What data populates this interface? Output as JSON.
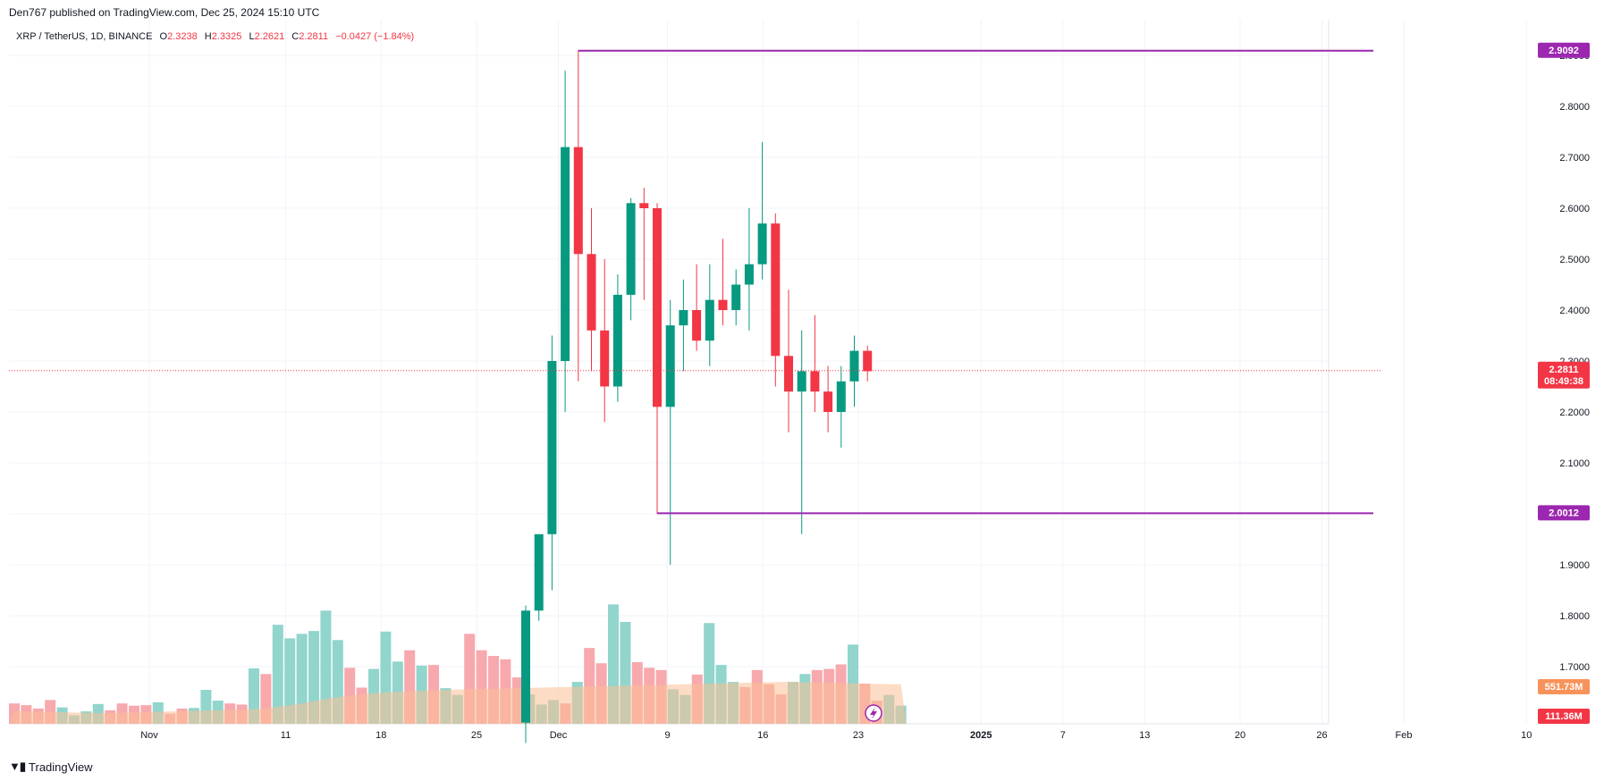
{
  "header": {
    "published": "Den767 published on TradingView.com, Dec 25, 2024 15:10 UTC"
  },
  "legend": {
    "symbol": "XRP / TetherUS, 1D, BINANCE",
    "o_label": "O",
    "o": "2.3238",
    "h_label": "H",
    "h": "2.3325",
    "l_label": "L",
    "l": "2.2621",
    "c_label": "C",
    "c": "2.2811",
    "change": "−0.0427 (−1.84%)"
  },
  "footer": {
    "brand": "TradingView"
  },
  "colors": {
    "up": "#089981",
    "down": "#f23645",
    "level": "#9c27b0",
    "price_line": "#f23645",
    "vol_up": "#91d5cc",
    "vol_down": "#f7a9ad",
    "vol_ma": "#fbbf96"
  },
  "chart_data": {
    "type": "candlestick",
    "symbol": "XRP / TetherUS",
    "timeframe": "1D",
    "exchange": "BINANCE",
    "ylim": [
      1.62,
      2.98
    ],
    "y_ticks": [
      "1.7000",
      "1.8000",
      "1.9000",
      "2.0000",
      "2.1000",
      "2.2000",
      "2.3000",
      "2.4000",
      "2.5000",
      "2.6000",
      "2.7000",
      "2.8000",
      "2.9000"
    ],
    "x_ticks": [
      {
        "label": "Nov",
        "index": 0
      },
      {
        "label": "11",
        "index": 10
      },
      {
        "label": "18",
        "index": 17
      },
      {
        "label": "25",
        "index": 24
      },
      {
        "label": "Dec",
        "index": 30
      },
      {
        "label": "9",
        "index": 38
      },
      {
        "label": "16",
        "index": 45
      },
      {
        "label": "23",
        "index": 52
      },
      {
        "label": "2025",
        "index": 61
      },
      {
        "label": "7",
        "index": 67
      },
      {
        "label": "13",
        "index": 73
      },
      {
        "label": "20",
        "index": 80
      },
      {
        "label": "26",
        "index": 86
      },
      {
        "label": "Feb",
        "index": 92
      },
      {
        "label": "10",
        "index": 101
      }
    ],
    "candles_start_index": 28,
    "candles": [
      {
        "o": 1.59,
        "h": 1.82,
        "l": 1.55,
        "c": 1.81
      },
      {
        "o": 1.81,
        "h": 1.96,
        "l": 1.79,
        "c": 1.96
      },
      {
        "o": 1.96,
        "h": 2.35,
        "l": 1.85,
        "c": 2.3
      },
      {
        "o": 2.3,
        "h": 2.87,
        "l": 2.2,
        "c": 2.72
      },
      {
        "o": 2.72,
        "h": 2.91,
        "l": 2.26,
        "c": 2.51
      },
      {
        "o": 2.51,
        "h": 2.6,
        "l": 2.28,
        "c": 2.36
      },
      {
        "o": 2.36,
        "h": 2.5,
        "l": 2.18,
        "c": 2.25
      },
      {
        "o": 2.25,
        "h": 2.47,
        "l": 2.22,
        "c": 2.43
      },
      {
        "o": 2.43,
        "h": 2.62,
        "l": 2.38,
        "c": 2.61
      },
      {
        "o": 2.61,
        "h": 2.64,
        "l": 2.42,
        "c": 2.6
      },
      {
        "o": 2.6,
        "h": 2.61,
        "l": 2.0,
        "c": 2.21
      },
      {
        "o": 2.21,
        "h": 2.42,
        "l": 1.9,
        "c": 2.37
      },
      {
        "o": 2.37,
        "h": 2.46,
        "l": 2.28,
        "c": 2.4
      },
      {
        "o": 2.4,
        "h": 2.49,
        "l": 2.32,
        "c": 2.34
      },
      {
        "o": 2.34,
        "h": 2.49,
        "l": 2.29,
        "c": 2.42
      },
      {
        "o": 2.42,
        "h": 2.54,
        "l": 2.37,
        "c": 2.4
      },
      {
        "o": 2.4,
        "h": 2.48,
        "l": 2.37,
        "c": 2.45
      },
      {
        "o": 2.45,
        "h": 2.6,
        "l": 2.36,
        "c": 2.49
      },
      {
        "o": 2.49,
        "h": 2.73,
        "l": 2.46,
        "c": 2.57
      },
      {
        "o": 2.57,
        "h": 2.59,
        "l": 2.25,
        "c": 2.31
      },
      {
        "o": 2.31,
        "h": 2.44,
        "l": 2.16,
        "c": 2.24
      },
      {
        "o": 2.24,
        "h": 2.36,
        "l": 1.96,
        "c": 2.28
      },
      {
        "o": 2.28,
        "h": 2.39,
        "l": 2.2,
        "c": 2.24
      },
      {
        "o": 2.24,
        "h": 2.29,
        "l": 2.16,
        "c": 2.2
      },
      {
        "o": 2.2,
        "h": 2.29,
        "l": 2.13,
        "c": 2.26
      },
      {
        "o": 2.26,
        "h": 2.35,
        "l": 2.21,
        "c": 2.32
      },
      {
        "o": 2.32,
        "h": 2.33,
        "l": 2.26,
        "c": 2.28
      }
    ],
    "volume_max": 3000,
    "volumes": [
      {
        "v": 360,
        "up": false
      },
      {
        "v": 330,
        "up": false
      },
      {
        "v": 270,
        "up": false
      },
      {
        "v": 420,
        "up": false
      },
      {
        "v": 290,
        "up": true
      },
      {
        "v": 150,
        "up": true
      },
      {
        "v": 220,
        "up": true
      },
      {
        "v": 350,
        "up": true
      },
      {
        "v": 240,
        "up": false
      },
      {
        "v": 360,
        "up": false
      },
      {
        "v": 320,
        "up": false
      },
      {
        "v": 330,
        "up": false
      },
      {
        "v": 380,
        "up": true
      },
      {
        "v": 180,
        "up": false
      },
      {
        "v": 270,
        "up": false
      },
      {
        "v": 280,
        "up": true
      },
      {
        "v": 600,
        "up": true
      },
      {
        "v": 410,
        "up": true
      },
      {
        "v": 360,
        "up": false
      },
      {
        "v": 340,
        "up": false
      },
      {
        "v": 980,
        "up": true
      },
      {
        "v": 880,
        "up": false
      },
      {
        "v": 1750,
        "up": true
      },
      {
        "v": 1510,
        "up": true
      },
      {
        "v": 1590,
        "up": true
      },
      {
        "v": 1640,
        "up": true
      },
      {
        "v": 2000,
        "up": true
      },
      {
        "v": 1480,
        "up": true
      },
      {
        "v": 990,
        "up": false
      },
      {
        "v": 640,
        "up": false
      },
      {
        "v": 970,
        "up": true
      },
      {
        "v": 1630,
        "up": true
      },
      {
        "v": 1100,
        "up": true
      },
      {
        "v": 1300,
        "up": false
      },
      {
        "v": 1030,
        "up": true
      },
      {
        "v": 1040,
        "up": false
      },
      {
        "v": 630,
        "up": true
      },
      {
        "v": 510,
        "up": true
      },
      {
        "v": 1590,
        "up": false
      },
      {
        "v": 1300,
        "up": false
      },
      {
        "v": 1200,
        "up": false
      },
      {
        "v": 1140,
        "up": false
      },
      {
        "v": 820,
        "up": false
      },
      {
        "v": 520,
        "up": true
      },
      {
        "v": 340,
        "up": true
      },
      {
        "v": 420,
        "up": true
      },
      {
        "v": 360,
        "up": false
      },
      {
        "v": 740,
        "up": true
      },
      {
        "v": 1340,
        "up": false
      },
      {
        "v": 1070,
        "up": false
      },
      {
        "v": 2110,
        "up": true
      },
      {
        "v": 1800,
        "up": true
      },
      {
        "v": 1090,
        "up": false
      },
      {
        "v": 990,
        "up": false
      },
      {
        "v": 950,
        "up": false
      },
      {
        "v": 610,
        "up": true
      },
      {
        "v": 510,
        "up": true
      },
      {
        "v": 870,
        "up": false
      },
      {
        "v": 1780,
        "up": true
      },
      {
        "v": 1040,
        "up": true
      },
      {
        "v": 740,
        "up": true
      },
      {
        "v": 650,
        "up": false
      },
      {
        "v": 950,
        "up": false
      },
      {
        "v": 700,
        "up": false
      },
      {
        "v": 520,
        "up": false
      },
      {
        "v": 740,
        "up": true
      },
      {
        "v": 880,
        "up": true
      },
      {
        "v": 950,
        "up": false
      },
      {
        "v": 970,
        "up": false
      },
      {
        "v": 1050,
        "up": false
      },
      {
        "v": 1400,
        "up": true
      },
      {
        "v": 710,
        "up": false
      },
      {
        "v": 410,
        "up": false
      },
      {
        "v": 510,
        "up": true
      },
      {
        "v": 320,
        "up": true
      }
    ],
    "volume_ma": [
      230,
      215,
      210,
      210,
      205,
      200,
      195,
      190,
      190,
      195,
      200,
      205,
      215,
      220,
      225,
      230,
      235,
      240,
      245,
      250,
      260,
      275,
      300,
      330,
      360,
      400,
      440,
      470,
      500,
      520,
      540,
      555,
      565,
      575,
      585,
      595,
      600,
      605,
      610,
      615,
      620,
      625,
      630,
      635,
      640,
      645,
      650,
      655,
      660,
      665,
      670,
      675,
      680,
      685,
      690,
      695,
      700,
      705,
      710,
      715,
      720,
      725,
      730,
      735,
      740,
      740,
      735,
      730,
      725,
      720,
      715,
      710,
      705,
      700,
      700
    ],
    "levels": [
      {
        "price": 2.9092,
        "label": "2.9092",
        "from_candle": 4
      },
      {
        "price": 2.0012,
        "label": "2.0012",
        "from_candle": 10
      }
    ],
    "last_price": {
      "label": "2.2811",
      "value": 2.2811,
      "countdown": "08:49:38"
    },
    "volume_labels": {
      "ma": "551.73M",
      "last": "111.36M"
    }
  }
}
